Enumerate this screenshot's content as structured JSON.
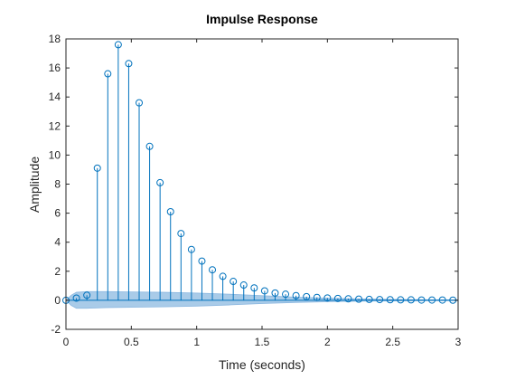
{
  "chart_data": {
    "type": "scatter",
    "plot_style": "stem",
    "title": "Impulse Response",
    "xlabel": "Time (seconds)",
    "ylabel": "Amplitude",
    "xlim": [
      0,
      3
    ],
    "ylim": [
      -2,
      18
    ],
    "xticks": [
      0,
      0.5,
      1,
      1.5,
      2,
      2.5,
      3
    ],
    "xtick_labels": [
      "0",
      "0.5",
      "1",
      "1.5",
      "2",
      "2.5",
      "3"
    ],
    "yticks": [
      -2,
      0,
      2,
      4,
      6,
      8,
      10,
      12,
      14,
      16,
      18
    ],
    "ytick_labels": [
      "-2",
      "0",
      "2",
      "4",
      "6",
      "8",
      "10",
      "12",
      "14",
      "16",
      "18"
    ],
    "grid": false,
    "box": true,
    "colors": {
      "stem": "#0072BD",
      "band_fill": "#A9CBE8",
      "band_edge": "#8DB8E0",
      "axes": "#262626"
    },
    "series": [
      {
        "x": [
          0,
          0.08,
          0.16,
          0.24,
          0.32,
          0.4,
          0.48,
          0.56,
          0.64,
          0.72,
          0.8,
          0.88,
          0.96,
          1.04,
          1.12,
          1.2,
          1.28,
          1.36,
          1.44,
          1.52,
          1.6,
          1.68,
          1.76,
          1.84,
          1.92,
          2.0,
          2.08,
          2.16,
          2.24,
          2.32,
          2.4,
          2.48,
          2.56,
          2.64,
          2.72,
          2.8,
          2.88,
          2.96
        ],
        "y": [
          0,
          0.15,
          0.35,
          9.1,
          15.6,
          17.6,
          16.3,
          13.6,
          10.6,
          8.1,
          6.1,
          4.6,
          3.5,
          2.7,
          2.1,
          1.65,
          1.3,
          1.05,
          0.85,
          0.65,
          0.5,
          0.42,
          0.32,
          0.25,
          0.2,
          0.16,
          0.13,
          0.1,
          0.08,
          0.06,
          0.05,
          0.04,
          0.03,
          0.03,
          0.02,
          0.02,
          0.02,
          0.01
        ]
      }
    ],
    "confidence_band": {
      "x": [
        0,
        0.04,
        0.08,
        0.16,
        0.32,
        0.5,
        0.75,
        1.0,
        1.25,
        1.5,
        1.75,
        2.0,
        2.25,
        2.5,
        2.75,
        3.0
      ],
      "upper": [
        0,
        0.35,
        0.55,
        0.6,
        0.6,
        0.58,
        0.55,
        0.5,
        0.42,
        0.32,
        0.22,
        0.15,
        0.1,
        0.06,
        0.04,
        0.03
      ],
      "lower": [
        0,
        -0.35,
        -0.55,
        -0.55,
        -0.5,
        -0.48,
        -0.45,
        -0.4,
        -0.32,
        -0.22,
        -0.15,
        -0.1,
        -0.06,
        -0.04,
        -0.03,
        -0.02
      ]
    }
  }
}
